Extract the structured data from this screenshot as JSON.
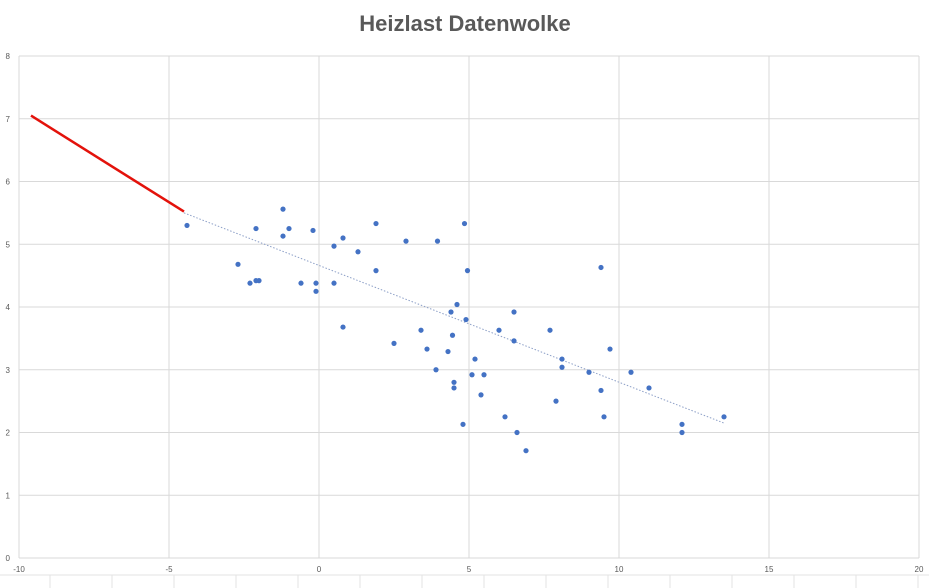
{
  "chart_data": {
    "type": "scatter",
    "title": "Heizlast Datenwolke",
    "xlabel": "",
    "ylabel": "",
    "xlim": [
      -10,
      20
    ],
    "ylim": [
      0,
      8
    ],
    "x_ticks": [
      "-10",
      "-5",
      "0",
      "5",
      "10",
      "15",
      "20"
    ],
    "y_ticks": [
      "0",
      "1",
      "2",
      "3",
      "4",
      "5",
      "6",
      "7",
      "8"
    ],
    "grid": true,
    "legend": "none",
    "colors": {
      "points": "#4472c4",
      "highlight_line": "#e3120b",
      "trendline": "#8c9fc7",
      "grid": "#d9d9d9",
      "title": "#595959"
    },
    "series": [
      {
        "points": [
          [
            -4.4,
            5.3
          ],
          [
            -2.7,
            4.68
          ],
          [
            -2.3,
            4.38
          ],
          [
            -2.1,
            5.25
          ],
          [
            -2.1,
            4.42
          ],
          [
            -2.0,
            4.42
          ],
          [
            -1.2,
            5.56
          ],
          [
            -1.2,
            5.13
          ],
          [
            -1.0,
            5.25
          ],
          [
            -0.6,
            4.38
          ],
          [
            -0.2,
            5.22
          ],
          [
            -0.1,
            4.38
          ],
          [
            -0.1,
            4.25
          ],
          [
            0.5,
            4.38
          ],
          [
            0.5,
            4.97
          ],
          [
            0.8,
            5.1
          ],
          [
            0.8,
            3.68
          ],
          [
            1.3,
            4.88
          ],
          [
            1.9,
            5.33
          ],
          [
            1.9,
            4.58
          ],
          [
            2.5,
            3.42
          ],
          [
            2.9,
            5.05
          ],
          [
            3.4,
            3.63
          ],
          [
            3.6,
            3.33
          ],
          [
            3.9,
            3.0
          ],
          [
            3.95,
            5.05
          ],
          [
            4.3,
            3.29
          ],
          [
            4.4,
            3.92
          ],
          [
            4.45,
            3.55
          ],
          [
            4.5,
            2.8
          ],
          [
            4.5,
            2.71
          ],
          [
            4.6,
            4.04
          ],
          [
            4.8,
            2.13
          ],
          [
            4.85,
            5.33
          ],
          [
            4.9,
            3.8
          ],
          [
            4.95,
            4.58
          ],
          [
            5.1,
            2.92
          ],
          [
            5.2,
            3.17
          ],
          [
            5.4,
            2.6
          ],
          [
            5.5,
            2.92
          ],
          [
            6.0,
            3.63
          ],
          [
            6.2,
            2.25
          ],
          [
            6.5,
            3.92
          ],
          [
            6.5,
            3.46
          ],
          [
            6.6,
            2.0
          ],
          [
            6.9,
            1.71
          ],
          [
            7.7,
            3.63
          ],
          [
            7.9,
            2.5
          ],
          [
            8.1,
            3.17
          ],
          [
            8.1,
            3.04
          ],
          [
            9.0,
            2.96
          ],
          [
            9.4,
            4.63
          ],
          [
            9.4,
            2.67
          ],
          [
            9.5,
            2.25
          ],
          [
            9.7,
            3.33
          ],
          [
            10.4,
            2.96
          ],
          [
            11.0,
            2.71
          ],
          [
            12.1,
            2.13
          ],
          [
            12.1,
            2.0
          ],
          [
            13.5,
            2.25
          ]
        ]
      }
    ],
    "trendline": {
      "points": [
        [
          -4.5,
          5.5
        ],
        [
          13.5,
          2.15
        ]
      ]
    },
    "highlight_line": {
      "points": [
        [
          -9.6,
          7.05
        ],
        [
          -4.5,
          5.52
        ]
      ]
    }
  }
}
